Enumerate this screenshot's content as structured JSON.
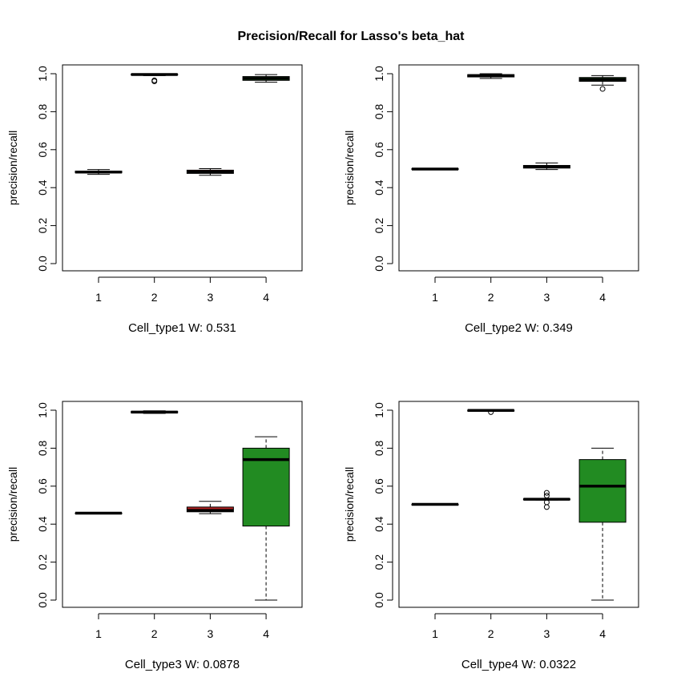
{
  "chart_data": {
    "type": "box",
    "title": "Precision/Recall for Lasso's beta_hat",
    "box_color": "#ffffff",
    "box_colors": [
      "#ffffff",
      "#ffffff",
      "#b22222",
      "#228b22"
    ],
    "panels": [
      {
        "xlabel": "Cell_type1  W: 0.531",
        "ylabel": "precision/recall",
        "categories": [
          "1",
          "2",
          "3",
          "4"
        ],
        "ylim": [
          0,
          1
        ],
        "yticks": [
          "0.0",
          "0.2",
          "0.4",
          "0.6",
          "0.8",
          "1.0"
        ],
        "boxes": [
          {
            "wlo": 0.47,
            "q1": 0.478,
            "median": 0.482,
            "q3": 0.487,
            "whi": 0.495,
            "outliers": []
          },
          {
            "wlo": 0.99,
            "q1": 0.993,
            "median": 0.996,
            "q3": 0.998,
            "whi": 1.0,
            "outliers": [
              0.96,
              0.965
            ]
          },
          {
            "wlo": 0.465,
            "q1": 0.475,
            "median": 0.482,
            "q3": 0.492,
            "whi": 0.5,
            "outliers": []
          },
          {
            "wlo": 0.955,
            "q1": 0.965,
            "median": 0.975,
            "q3": 0.985,
            "whi": 0.995,
            "outliers": []
          }
        ]
      },
      {
        "xlabel": "Cell_type2  W: 0.349",
        "ylabel": "precision/recall",
        "categories": [
          "1",
          "2",
          "3",
          "4"
        ],
        "ylim": [
          0,
          1
        ],
        "yticks": [
          "0.0",
          "0.2",
          "0.4",
          "0.6",
          "0.8",
          "1.0"
        ],
        "boxes": [
          {
            "wlo": 0.494,
            "q1": 0.496,
            "median": 0.498,
            "q3": 0.5,
            "whi": 0.502,
            "outliers": []
          },
          {
            "wlo": 0.975,
            "q1": 0.983,
            "median": 0.99,
            "q3": 0.995,
            "whi": 1.0,
            "outliers": []
          },
          {
            "wlo": 0.495,
            "q1": 0.503,
            "median": 0.51,
            "q3": 0.517,
            "whi": 0.53,
            "outliers": []
          },
          {
            "wlo": 0.94,
            "q1": 0.96,
            "median": 0.97,
            "q3": 0.98,
            "whi": 0.99,
            "outliers": [
              0.92
            ]
          }
        ]
      },
      {
        "xlabel": "Cell_type3  W: 0.0878",
        "ylabel": "precision/recall",
        "categories": [
          "1",
          "2",
          "3",
          "4"
        ],
        "ylim": [
          0,
          1
        ],
        "yticks": [
          "0.0",
          "0.2",
          "0.4",
          "0.6",
          "0.8",
          "1.0"
        ],
        "boxes": [
          {
            "wlo": 0.456,
            "q1": 0.457,
            "median": 0.458,
            "q3": 0.459,
            "whi": 0.46,
            "outliers": []
          },
          {
            "wlo": 0.983,
            "q1": 0.986,
            "median": 0.99,
            "q3": 0.994,
            "whi": 0.997,
            "outliers": []
          },
          {
            "wlo": 0.455,
            "q1": 0.465,
            "median": 0.472,
            "q3": 0.49,
            "whi": 0.52,
            "outliers": []
          },
          {
            "wlo": 0.0,
            "q1": 0.39,
            "median": 0.74,
            "q3": 0.8,
            "whi": 0.86,
            "outliers": []
          }
        ]
      },
      {
        "xlabel": "Cell_type4  W: 0.0322",
        "ylabel": "precision/recall",
        "categories": [
          "1",
          "2",
          "3",
          "4"
        ],
        "ylim": [
          0,
          1
        ],
        "yticks": [
          "0.0",
          "0.2",
          "0.4",
          "0.6",
          "0.8",
          "1.0"
        ],
        "boxes": [
          {
            "wlo": 0.502,
            "q1": 0.503,
            "median": 0.504,
            "q3": 0.505,
            "whi": 0.506,
            "outliers": []
          },
          {
            "wlo": 0.997,
            "q1": 0.998,
            "median": 0.999,
            "q3": 1.0,
            "whi": 1.0,
            "outliers": [
              0.99
            ]
          },
          {
            "wlo": 0.527,
            "q1": 0.529,
            "median": 0.531,
            "q3": 0.533,
            "whi": 0.535,
            "outliers": [
              0.49,
              0.515,
              0.55,
              0.565
            ]
          },
          {
            "wlo": 0.0,
            "q1": 0.41,
            "median": 0.6,
            "q3": 0.74,
            "whi": 0.8,
            "outliers": []
          }
        ]
      }
    ]
  }
}
